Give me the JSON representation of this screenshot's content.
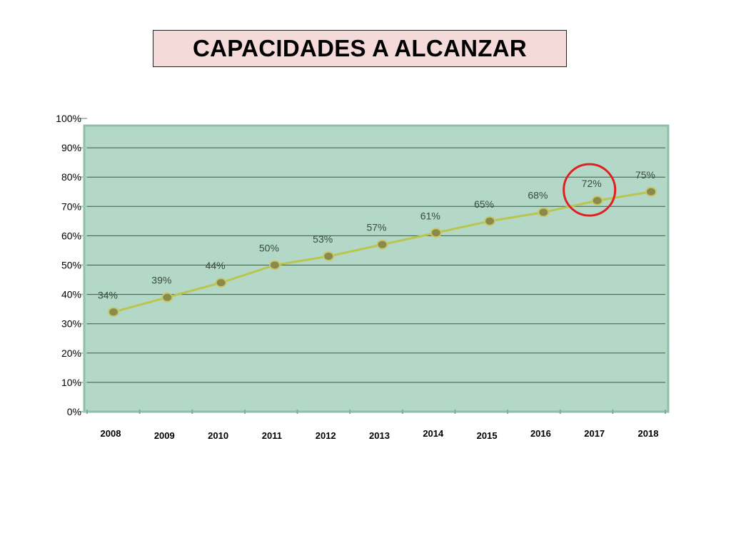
{
  "chart_data": {
    "type": "line",
    "title": "CAPACIDADES A ALCANZAR",
    "categories": [
      "2008",
      "2009",
      "2010",
      "2011",
      "2012",
      "2013",
      "2014",
      "2015",
      "2016",
      "2017",
      "2018"
    ],
    "values": [
      34,
      39,
      44,
      50,
      53,
      57,
      61,
      65,
      68,
      72,
      75
    ],
    "data_labels": [
      "34%",
      "39%",
      "44%",
      "50%",
      "53%",
      "57%",
      "61%",
      "65%",
      "68%",
      "72%",
      "75%"
    ],
    "ylim": [
      0,
      100
    ],
    "y_ticks": [
      "0%",
      "10%",
      "20%",
      "30%",
      "40%",
      "50%",
      "60%",
      "70%",
      "80%",
      "90%",
      "100%"
    ],
    "y_tick_values": [
      0,
      10,
      20,
      30,
      40,
      50,
      60,
      70,
      80,
      90,
      100
    ],
    "xlabel": "",
    "ylabel": "",
    "grid": true,
    "highlighted_category": "2017",
    "colors": {
      "plot_background": "#b3d8c8",
      "line": "#b9c54c",
      "marker_fill": "#8a8a4e",
      "marker_stroke": "#c8c86a",
      "highlight_circle": "#e02020",
      "gridline": "#3c5a48"
    }
  }
}
